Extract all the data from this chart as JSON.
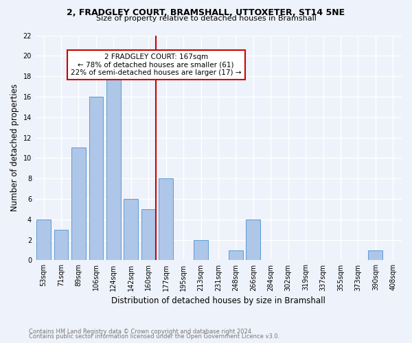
{
  "title1": "2, FRADGLEY COURT, BRAMSHALL, UTTOXETER, ST14 5NE",
  "title2": "Size of property relative to detached houses in Bramshall",
  "xlabel": "Distribution of detached houses by size in Bramshall",
  "ylabel": "Number of detached properties",
  "footnote1": "Contains HM Land Registry data © Crown copyright and database right 2024.",
  "footnote2": "Contains public sector information licensed under the Open Government Licence v3.0.",
  "categories": [
    "53sqm",
    "71sqm",
    "89sqm",
    "106sqm",
    "124sqm",
    "142sqm",
    "160sqm",
    "177sqm",
    "195sqm",
    "213sqm",
    "231sqm",
    "248sqm",
    "266sqm",
    "284sqm",
    "302sqm",
    "319sqm",
    "337sqm",
    "355sqm",
    "373sqm",
    "390sqm",
    "408sqm"
  ],
  "values": [
    4,
    3,
    11,
    16,
    18,
    6,
    5,
    8,
    0,
    2,
    0,
    1,
    4,
    0,
    0,
    0,
    0,
    0,
    0,
    1,
    0
  ],
  "bar_color": "#aec6e8",
  "bar_edge_color": "#5b9bd5",
  "property_line_color": "#cc0000",
  "annotation_title": "2 FRADGLEY COURT: 167sqm",
  "annotation_line1": "← 78% of detached houses are smaller (61)",
  "annotation_line2": "22% of semi-detached houses are larger (17) →",
  "annotation_box_color": "#ffffff",
  "annotation_box_edge": "#cc0000",
  "ylim": [
    0,
    22
  ],
  "yticks": [
    0,
    2,
    4,
    6,
    8,
    10,
    12,
    14,
    16,
    18,
    20,
    22
  ],
  "bg_color": "#eef2fa"
}
